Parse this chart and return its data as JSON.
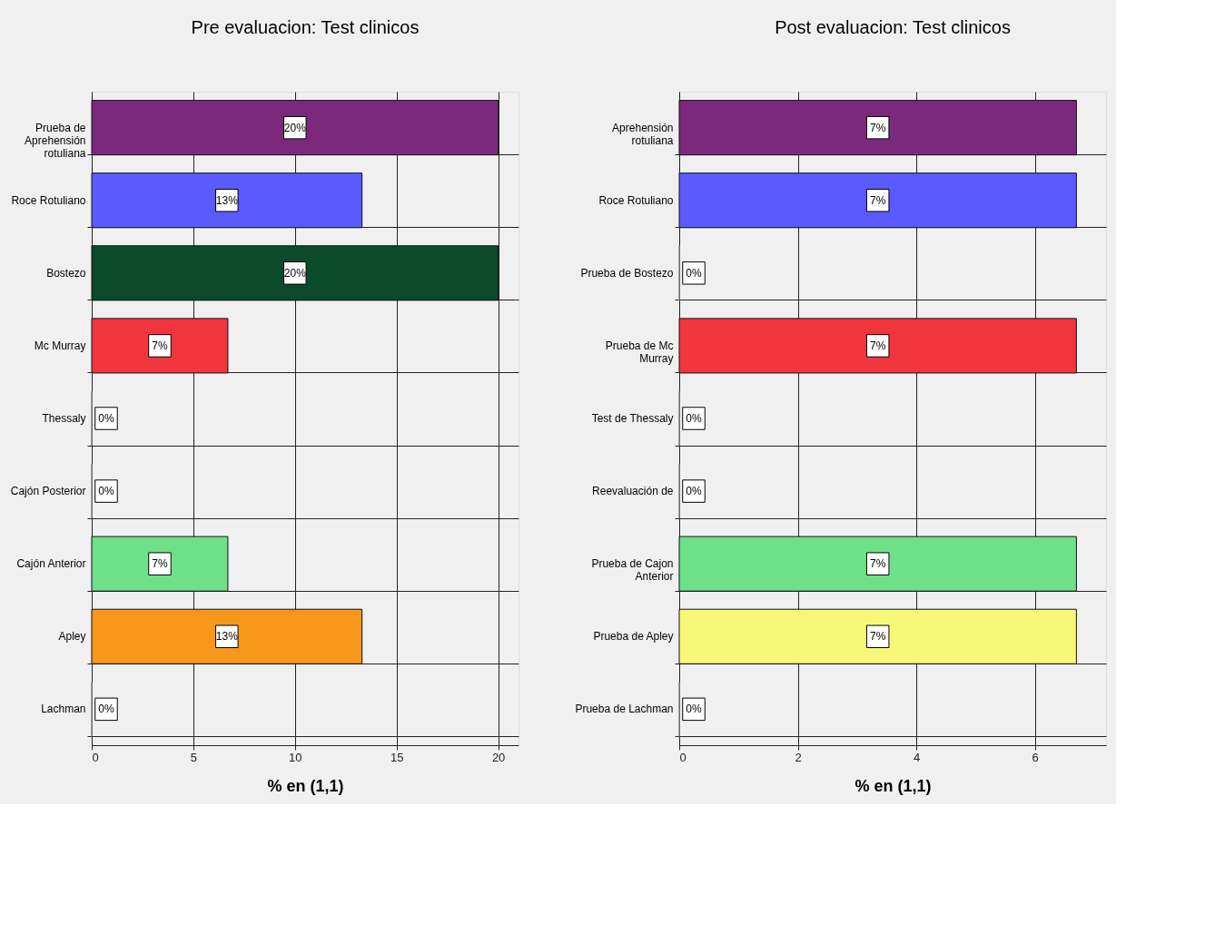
{
  "chart_data": [
    {
      "type": "bar",
      "orientation": "horizontal",
      "title": "Pre evaluacion: Test clinicos",
      "xlabel": "% en (1,1)",
      "grid": true,
      "categories": [
        "Prueba de\nAprehensión\nrotuliana",
        "Roce Rotuliano",
        "Bostezo",
        "Mc Murray",
        "Thessaly",
        "Cajón Posterior",
        "Cajón Anterior",
        "Apley",
        "Lachman"
      ],
      "values": [
        20,
        13.3,
        20,
        6.7,
        0,
        0,
        6.7,
        13.3,
        0
      ],
      "value_labels": [
        "20%",
        "13%",
        "20%",
        "7%",
        "0%",
        "0%",
        "7%",
        "13%",
        "0%"
      ],
      "colors": [
        "#7b2a7b",
        "#5a5aff",
        "#0b4a2a",
        "#f0363c",
        "#888888",
        "#888888",
        "#6ee08a",
        "#f7981d",
        "#888888"
      ],
      "xlim": [
        0,
        21
      ],
      "xticks": [
        0,
        5,
        10,
        15,
        20
      ]
    },
    {
      "type": "bar",
      "orientation": "horizontal",
      "title": "Post evaluacion: Test clinicos",
      "xlabel": "% en (1,1)",
      "grid": true,
      "categories": [
        "Aprehensión\nrotuliana",
        "Roce Rotuliano",
        "Prueba de Bostezo",
        "Prueba de Mc\nMurray",
        "Test de Thessaly",
        "Reevaluación de",
        "Prueba de Cajon\nAnterior",
        "Prueba de Apley",
        "Prueba de Lachman"
      ],
      "values": [
        6.7,
        6.7,
        0,
        6.7,
        0,
        0,
        6.7,
        6.7,
        0
      ],
      "value_labels": [
        "7%",
        "7%",
        "0%",
        "7%",
        "0%",
        "0%",
        "7%",
        "7%",
        "0%"
      ],
      "colors": [
        "#7b2a7b",
        "#5a5aff",
        "#888888",
        "#f0363c",
        "#888888",
        "#888888",
        "#6ee08a",
        "#f8f878",
        "#888888"
      ],
      "xlim": [
        0,
        7.2
      ],
      "xticks": [
        0,
        2,
        4,
        6
      ]
    }
  ]
}
